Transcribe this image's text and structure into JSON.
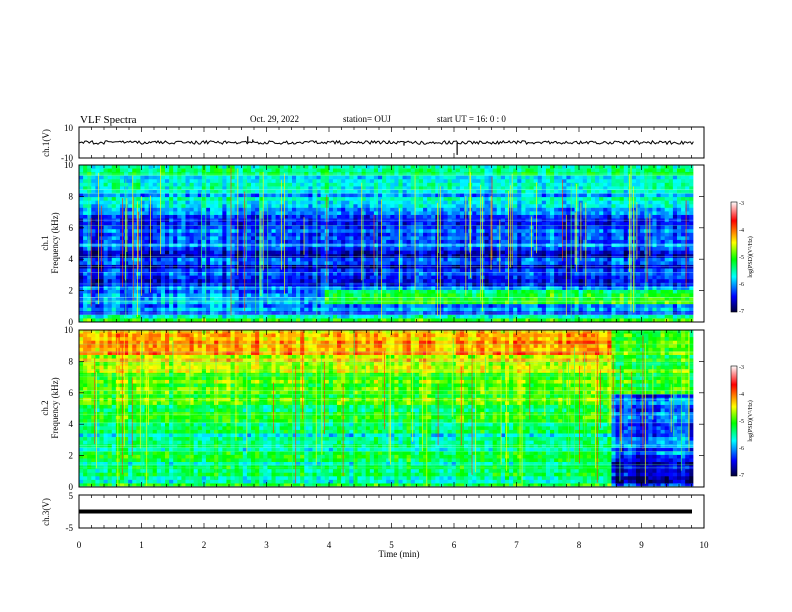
{
  "header": {
    "title": "VLF Spectra",
    "date": "Oct. 29, 2022",
    "station": "station= OUJ",
    "start": "start  UT =   16: 0  : 0"
  },
  "colorbar": {
    "label": "log(PSD)(V²/Hz)",
    "ticks": [
      "-3",
      "-4",
      "-5",
      "-6",
      "-7"
    ],
    "stops": [
      "#ffffff",
      "#ff0000",
      "#ffff00",
      "#00ff00",
      "#00ffff",
      "#0000ff",
      "#00003a"
    ]
  },
  "chart_data": [
    {
      "type": "line",
      "name": "ch1-waveform",
      "ylabel": "ch.1(V)",
      "ylim": [
        -10,
        10
      ],
      "yticks": [
        "10",
        "-10"
      ],
      "baseline": 0,
      "spikes": [
        {
          "x": 2.7,
          "y": 4
        },
        {
          "x": 2.78,
          "y": 2
        },
        {
          "x": 6.05,
          "y": -8
        },
        {
          "x": 5.2,
          "y": -2
        }
      ]
    },
    {
      "type": "heatmap",
      "name": "ch1-spectrogram",
      "ylabel_top": "ch.1",
      "ylabel": "Frequency (kHz)",
      "xlim": [
        0,
        10
      ],
      "ylim": [
        0,
        10
      ],
      "yticks": [
        "0",
        "2",
        "4",
        "6",
        "8",
        "10"
      ],
      "data_extent_x": 9.83,
      "level_range_log_psd": [
        -7,
        -3
      ],
      "change_at_min": 3.9
    },
    {
      "type": "heatmap",
      "name": "ch2-spectrogram",
      "ylabel_top": "ch.2",
      "ylabel": "Frequency (kHz)",
      "xlim": [
        0,
        10
      ],
      "ylim": [
        0,
        10
      ],
      "yticks": [
        "0",
        "2",
        "4",
        "6",
        "8",
        "10"
      ],
      "data_extent_x": 9.83,
      "level_range_log_psd": [
        -7,
        -3
      ],
      "change_at_min": 8.55
    },
    {
      "type": "line",
      "name": "ch3-waveform",
      "ylabel": "ch.3(V)",
      "ylim": [
        -5,
        5
      ],
      "yticks": [
        "5",
        "-5"
      ],
      "baseline": 0
    }
  ],
  "xaxis": {
    "label": "Time (min)",
    "ticks": [
      "0",
      "1",
      "2",
      "3",
      "4",
      "5",
      "6",
      "7",
      "8",
      "9",
      "10"
    ],
    "xlim": [
      0,
      10
    ]
  }
}
